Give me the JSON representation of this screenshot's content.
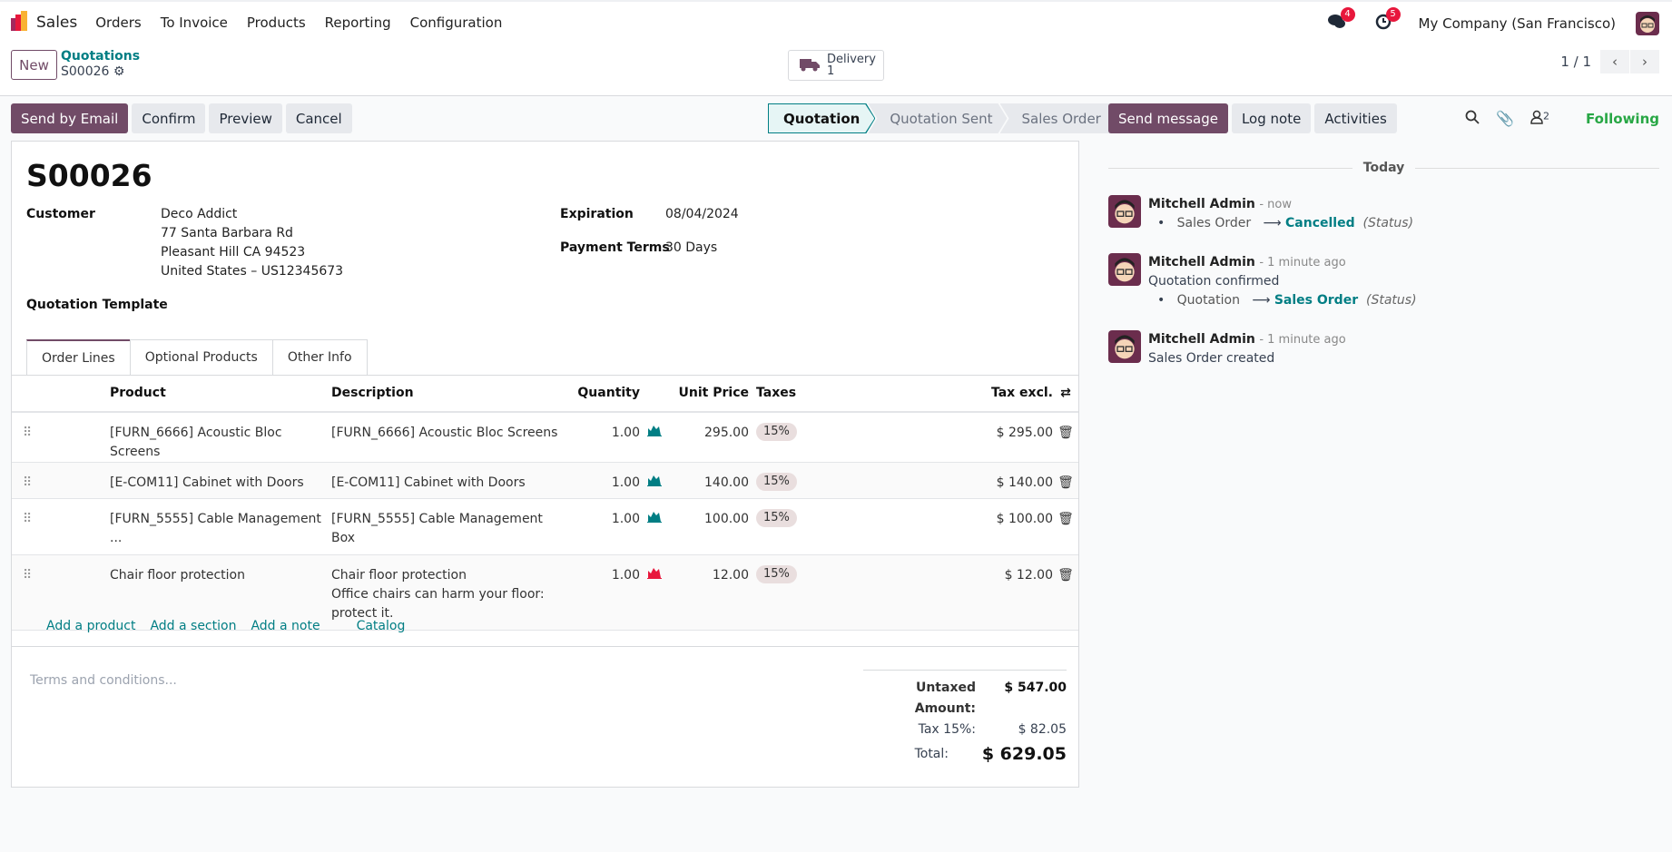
{
  "topnav": {
    "app": "Sales",
    "menus": [
      "Orders",
      "To Invoice",
      "Products",
      "Reporting",
      "Configuration"
    ],
    "messages_count": "4",
    "activities_count": "5",
    "company": "My Company (San Francisco)"
  },
  "control": {
    "new_label": "New",
    "breadcrumb_parent": "Quotations",
    "record": "S00026",
    "delivery_label": "Delivery",
    "delivery_count": "1",
    "pager": "1 / 1"
  },
  "actions": {
    "send_email": "Send by Email",
    "confirm": "Confirm",
    "preview": "Preview",
    "cancel": "Cancel"
  },
  "statusbar": {
    "stages": [
      "Quotation",
      "Quotation Sent",
      "Sales Order"
    ],
    "current": "Quotation"
  },
  "form": {
    "title": "S00026",
    "customer_label": "Customer",
    "customer_name": "Deco Addict",
    "customer_address": [
      "77 Santa Barbara Rd",
      "Pleasant Hill CA 94523",
      "United States – US12345673"
    ],
    "expiration_label": "Expiration",
    "expiration": "08/04/2024",
    "payment_terms_label": "Payment Terms",
    "payment_terms": "30 Days",
    "template_label": "Quotation Template"
  },
  "tabs": [
    "Order Lines",
    "Optional Products",
    "Other Info"
  ],
  "lines": {
    "headers": {
      "product": "Product",
      "description": "Description",
      "quantity": "Quantity",
      "unit_price": "Unit Price",
      "taxes": "Taxes",
      "subtotal": "Tax excl."
    },
    "rows": [
      {
        "product": "[FURN_6666] Acoustic Bloc Screens",
        "description": [
          "[FURN_6666] Acoustic Bloc Screens"
        ],
        "qty": "1.00",
        "stock": "available",
        "price": "295.00",
        "tax": "15%",
        "subtotal": "$ 295.00"
      },
      {
        "product": "[E-COM11] Cabinet with Doors",
        "description": [
          "[E-COM11] Cabinet with Doors"
        ],
        "qty": "1.00",
        "stock": "available",
        "price": "140.00",
        "tax": "15%",
        "subtotal": "$ 140.00"
      },
      {
        "product": "[FURN_5555] Cable Management ...",
        "description": [
          "[FURN_5555] Cable Management",
          "Box"
        ],
        "qty": "1.00",
        "stock": "available",
        "price": "100.00",
        "tax": "15%",
        "subtotal": "$ 100.00"
      },
      {
        "product": "Chair floor protection",
        "description": [
          "Chair floor protection",
          "Office chairs can harm your floor:",
          "protect it."
        ],
        "qty": "1.00",
        "stock": "unavailable",
        "price": "12.00",
        "tax": "15%",
        "subtotal": "$ 12.00"
      }
    ],
    "add_links": [
      "Add a product",
      "Add a section",
      "Add a note",
      "Catalog"
    ]
  },
  "terms_placeholder": "Terms and conditions...",
  "totals": {
    "untaxed_label": "Untaxed Amount:",
    "untaxed": "$ 547.00",
    "tax_label": "Tax 15%:",
    "tax": "$ 82.05",
    "total_label": "Total:",
    "total": "$ 629.05"
  },
  "chatter": {
    "send_message": "Send message",
    "log_note": "Log note",
    "activities": "Activities",
    "followers_count": "2",
    "following": "Following",
    "date_sep": "Today",
    "messages": [
      {
        "author": "Mitchell Admin",
        "time": "- now",
        "text": "",
        "old": "Sales Order",
        "new": "Cancelled",
        "field": "(Status)"
      },
      {
        "author": "Mitchell Admin",
        "time": "- 1 minute ago",
        "text": "Quotation confirmed",
        "old": "Quotation",
        "new": "Sales Order",
        "field": "(Status)"
      },
      {
        "author": "Mitchell Admin",
        "time": "- 1 minute ago",
        "text": "Sales Order created"
      }
    ]
  },
  "colors": {
    "brand": "#714b67",
    "link": "#017e84",
    "stock_ok": "#017e84",
    "stock_bad": "#e8173c",
    "following": "#28a745"
  }
}
